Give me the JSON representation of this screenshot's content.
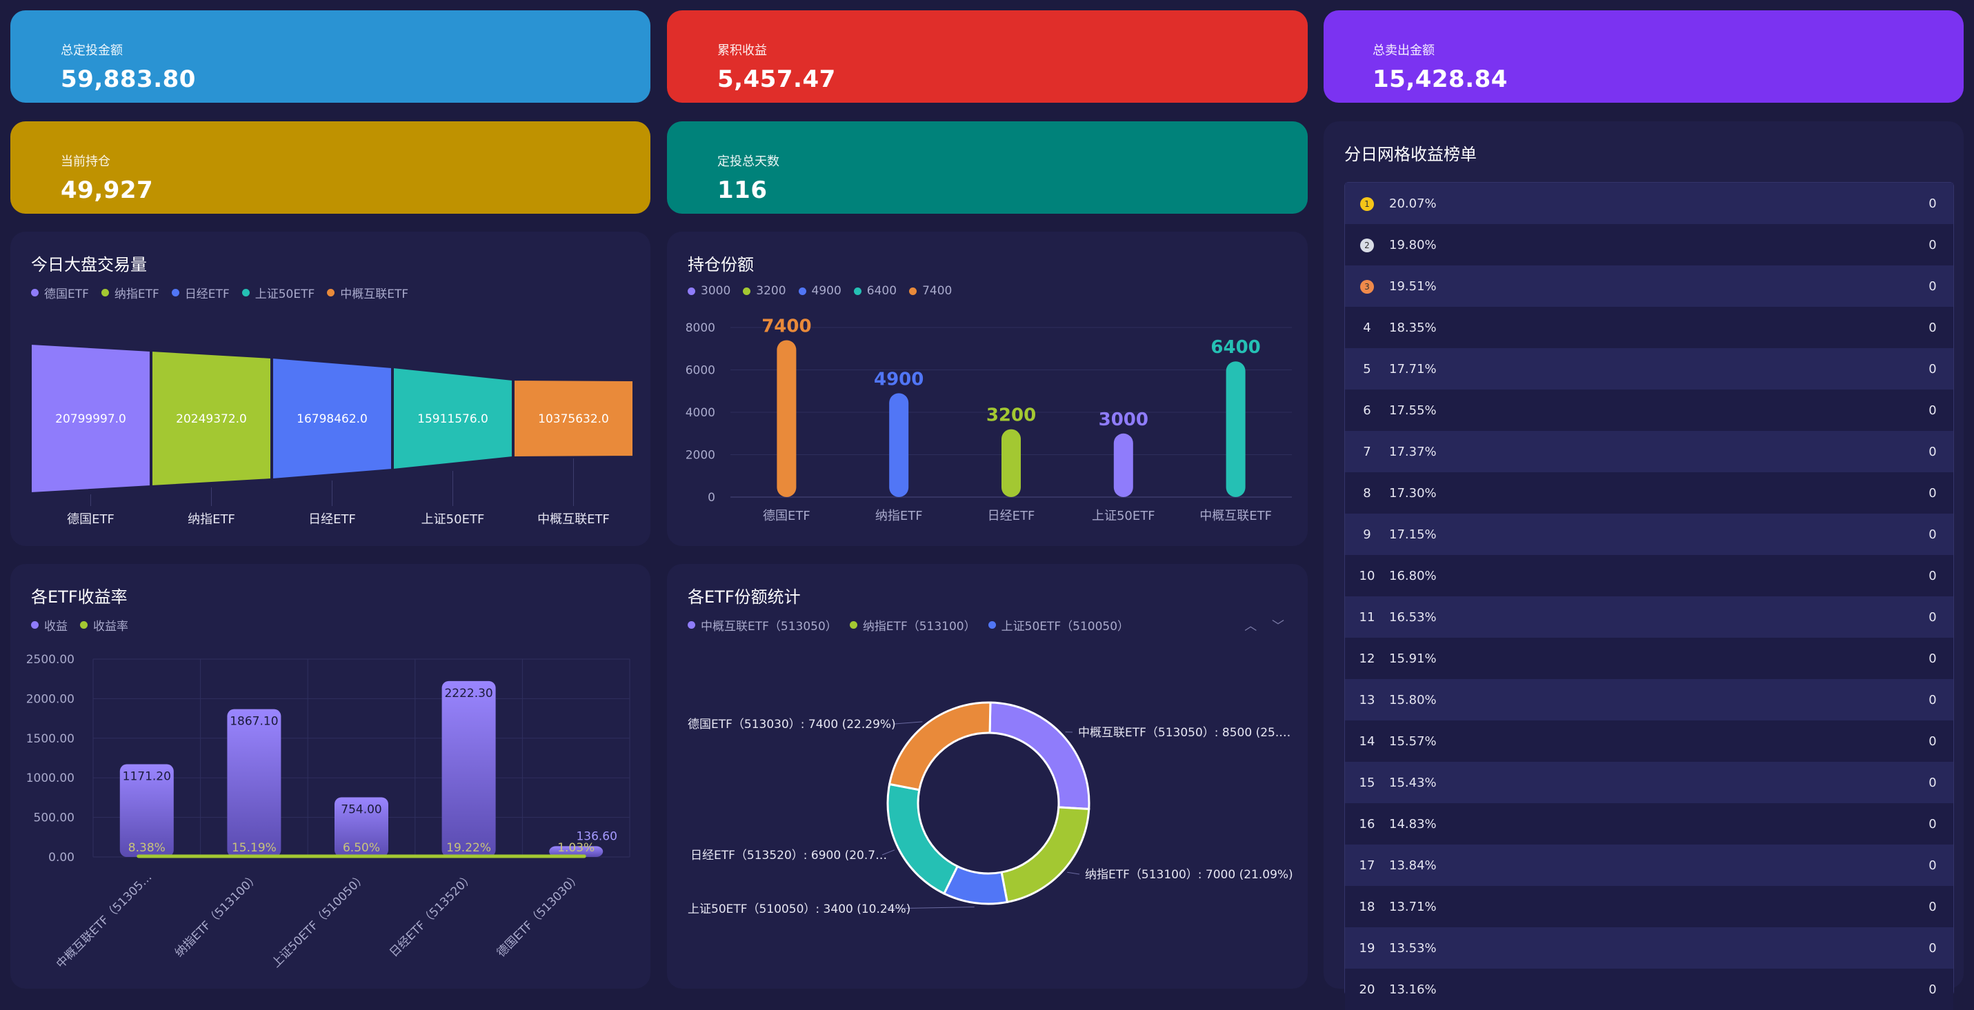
{
  "stats": {
    "total_invest": {
      "label": "总定投金额",
      "value": "59,883.80",
      "color": "#2a93d3"
    },
    "cum_profit": {
      "label": "累积收益",
      "value": "5,457.47",
      "color": "#e02e2a"
    },
    "total_sold": {
      "label": "总卖出金额",
      "value": "15,428.84",
      "color": "#7b33f1"
    },
    "holding": {
      "label": "当前持仓",
      "value": "49,927",
      "color": "#bf9200"
    },
    "days": {
      "label": "定投总天数",
      "value": "116",
      "color": "#00827a"
    }
  },
  "funnel": {
    "title": "今日大盘交易量",
    "legend": [
      "德国ETF",
      "纳指ETF",
      "日经ETF",
      "上证50ETF",
      "中概互联ETF"
    ],
    "colors": [
      "#8f7cfb",
      "#a3c832",
      "#5176f6",
      "#25c0b4",
      "#e98a3a"
    ],
    "value_labels": [
      "20799997.0",
      "20249372.0",
      "16798462.0",
      "15911576.0",
      "10375632.0"
    ]
  },
  "holdings": {
    "title": "持仓份额",
    "legend": [
      "3000",
      "3200",
      "4900",
      "6400",
      "7400"
    ],
    "legend_colors": [
      "#8f7cfb",
      "#a3c832",
      "#5176f6",
      "#25c0b4",
      "#e98a3a"
    ],
    "y_ticks": [
      "8000",
      "6000",
      "4000",
      "2000",
      "0"
    ]
  },
  "etf_returns": {
    "title": "各ETF收益率",
    "legend": [
      "收益",
      "收益率"
    ],
    "legend_colors": [
      "#8f7cfb",
      "#a3c832"
    ],
    "y_ticks": [
      "2500.00",
      "2000.00",
      "1500.00",
      "1000.00",
      "500.00",
      "0.00"
    ]
  },
  "share_stats": {
    "title": "各ETF份额统计",
    "legend": [
      "中概互联ETF（513050）",
      "纳指ETF（513100）",
      "上证50ETF（510050）"
    ],
    "legend_colors": [
      "#8f7cfb",
      "#a3c832",
      "#5176f6"
    ],
    "arrows": "︿ ﹀",
    "slice_labels": [
      "中概互联ETF（513050）: 8500 (25.…",
      "纳指ETF（513100）: 7000 (21.09%)",
      "上证50ETF（510050）: 3400 (10.24%)",
      "日经ETF（513520）: 6900 (20.7…",
      "德国ETF（513030）: 7400 (22.29%)"
    ]
  },
  "ranking": {
    "title": "分日网格收益榜单",
    "medal_colors": [
      "#f5c518",
      "#d9dde6",
      "#f08a4b"
    ],
    "rows": [
      {
        "rank": "1",
        "pct": "20.07%",
        "count": "0"
      },
      {
        "rank": "2",
        "pct": "19.80%",
        "count": "0"
      },
      {
        "rank": "3",
        "pct": "19.51%",
        "count": "0"
      },
      {
        "rank": "4",
        "pct": "18.35%",
        "count": "0"
      },
      {
        "rank": "5",
        "pct": "17.71%",
        "count": "0"
      },
      {
        "rank": "6",
        "pct": "17.55%",
        "count": "0"
      },
      {
        "rank": "7",
        "pct": "17.37%",
        "count": "0"
      },
      {
        "rank": "8",
        "pct": "17.30%",
        "count": "0"
      },
      {
        "rank": "9",
        "pct": "17.15%",
        "count": "0"
      },
      {
        "rank": "10",
        "pct": "16.80%",
        "count": "0"
      },
      {
        "rank": "11",
        "pct": "16.53%",
        "count": "0"
      },
      {
        "rank": "12",
        "pct": "15.91%",
        "count": "0"
      },
      {
        "rank": "13",
        "pct": "15.80%",
        "count": "0"
      },
      {
        "rank": "14",
        "pct": "15.57%",
        "count": "0"
      },
      {
        "rank": "15",
        "pct": "15.43%",
        "count": "0"
      },
      {
        "rank": "16",
        "pct": "14.83%",
        "count": "0"
      },
      {
        "rank": "17",
        "pct": "13.84%",
        "count": "0"
      },
      {
        "rank": "18",
        "pct": "13.71%",
        "count": "0"
      },
      {
        "rank": "19",
        "pct": "13.53%",
        "count": "0"
      },
      {
        "rank": "20",
        "pct": "13.16%",
        "count": "0"
      }
    ]
  },
  "chart_data": [
    {
      "type": "funnel",
      "title": "今日大盘交易量",
      "categories": [
        "德国ETF",
        "纳指ETF",
        "日经ETF",
        "上证50ETF",
        "中概互联ETF"
      ],
      "values": [
        20799997.0,
        20249372.0,
        16798462.0,
        15911576.0,
        10375632.0
      ],
      "colors": [
        "#8f7cfb",
        "#a3c832",
        "#5176f6",
        "#25c0b4",
        "#e98a3a"
      ]
    },
    {
      "type": "bar",
      "title": "持仓份额",
      "categories": [
        "德国ETF",
        "纳指ETF",
        "日经ETF",
        "上证50ETF",
        "中概互联ETF"
      ],
      "values": [
        7400,
        4900,
        3200,
        3000,
        6400
      ],
      "colors": [
        "#e98a3a",
        "#5176f6",
        "#a3c832",
        "#8f7cfb",
        "#25c0b4"
      ],
      "ylim": [
        0,
        8000
      ],
      "grid": true
    },
    {
      "type": "bar",
      "title": "各ETF收益率",
      "categories": [
        "中概互联ETF（51305…",
        "纳指ETF（513100）",
        "上证50ETF（510050）",
        "日经ETF（513520）",
        "德国ETF（513030）"
      ],
      "series": [
        {
          "name": "收益",
          "values": [
            1171.2,
            1867.1,
            754.0,
            2222.3,
            136.6
          ],
          "labels": [
            "1171.20",
            "1867.10",
            "754.00",
            "2222.30",
            "136.60"
          ]
        },
        {
          "name": "收益率",
          "values": [
            8.38,
            15.19,
            6.5,
            19.22,
            1.03
          ],
          "labels": [
            "8.38%",
            "15.19%",
            "6.50%",
            "19.22%",
            "1.03%"
          ]
        }
      ],
      "ylim": [
        0,
        2500
      ],
      "grid": true
    },
    {
      "type": "pie",
      "title": "各ETF份额统计",
      "categories": [
        "中概互联ETF（513050）",
        "纳指ETF（513100）",
        "上证50ETF（510050）",
        "日经ETF（513520）",
        "德国ETF（513030）"
      ],
      "values": [
        8500,
        7000,
        3400,
        6900,
        7400
      ],
      "colors": [
        "#8f7cfb",
        "#a3c832",
        "#5176f6",
        "#25c0b4",
        "#e98a3a"
      ]
    }
  ]
}
